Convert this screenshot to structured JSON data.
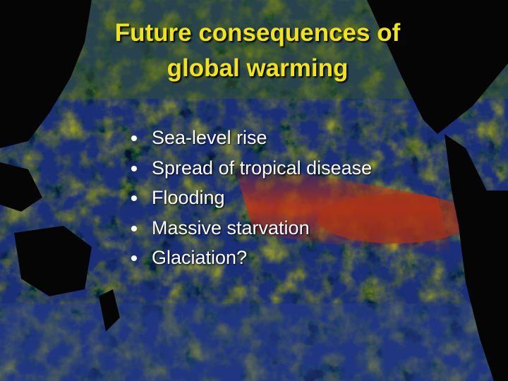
{
  "slide": {
    "title": [
      "Future consequences of",
      "global warming"
    ],
    "bullets": [
      "Sea-level rise",
      "Spread of tropical disease",
      "Flooding",
      "Massive starvation",
      "Glaciation?"
    ]
  }
}
